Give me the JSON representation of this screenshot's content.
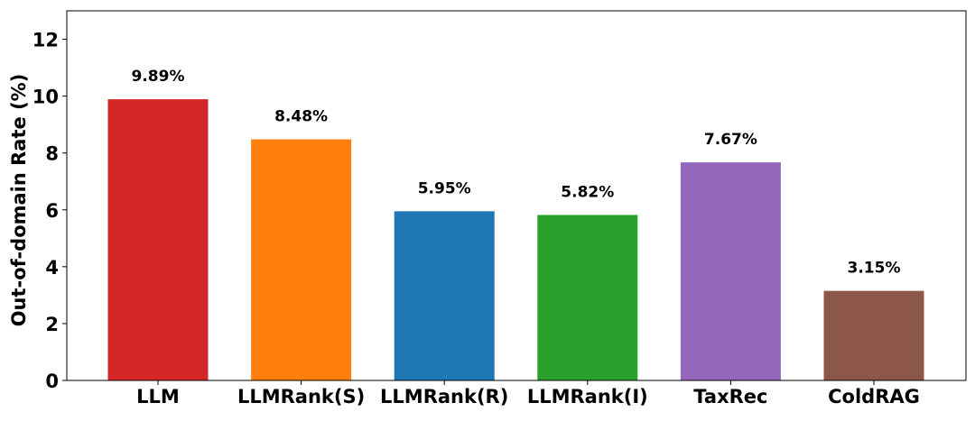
{
  "chart_data": {
    "type": "bar",
    "title": "",
    "xlabel": "",
    "ylabel": "Out-of-domain Rate (%)",
    "ylim": [
      0,
      13
    ],
    "yticks": [
      0,
      2,
      4,
      6,
      8,
      10,
      12
    ],
    "grid": false,
    "legend": "none",
    "categories": [
      "LLM",
      "LLMRank(S)",
      "LLMRank(R)",
      "LLMRank(I)",
      "TaxRec",
      "ColdRAG"
    ],
    "values": [
      9.89,
      8.48,
      5.95,
      5.82,
      7.67,
      3.15
    ],
    "value_labels": [
      "9.89%",
      "8.48%",
      "5.95%",
      "5.82%",
      "7.67%",
      "3.15%"
    ],
    "colors": [
      "#d62728",
      "#ff7f0e",
      "#1f77b4",
      "#2ca02c",
      "#9467bd",
      "#8c564b"
    ]
  }
}
